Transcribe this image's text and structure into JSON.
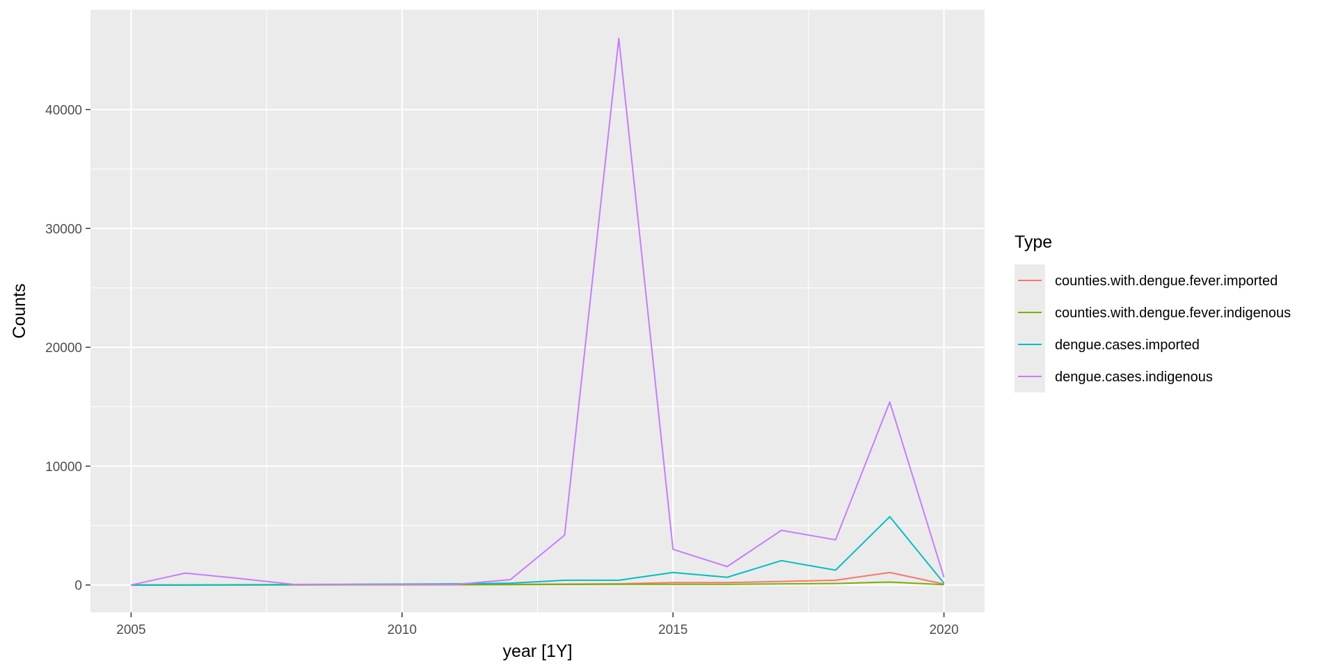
{
  "chart_data": {
    "type": "line",
    "title": "",
    "xlabel": "year [1Y]",
    "ylabel": "Counts",
    "x": [
      2005,
      2006,
      2007,
      2008,
      2009,
      2010,
      2011,
      2012,
      2013,
      2014,
      2015,
      2016,
      2017,
      2018,
      2019,
      2020
    ],
    "xticks": [
      2005,
      2010,
      2015,
      2020
    ],
    "xlim": [
      2004.25,
      2020.75
    ],
    "yticks": [
      0,
      10000,
      20000,
      30000,
      40000
    ],
    "ylim": [
      -2300,
      48400
    ],
    "grid": true,
    "legend": {
      "title": "Type",
      "placement": "right"
    },
    "series": [
      {
        "name": "counties.with.dengue.fever.imported",
        "color": "#F8766D",
        "values": [
          0,
          0,
          5,
          10,
          15,
          20,
          30,
          50,
          80,
          100,
          200,
          200,
          300,
          400,
          1050,
          80
        ]
      },
      {
        "name": "counties.with.dengue.fever.indigenous",
        "color": "#7CAE00",
        "values": [
          0,
          0,
          0,
          5,
          10,
          15,
          20,
          30,
          40,
          60,
          60,
          60,
          90,
          120,
          250,
          30
        ]
      },
      {
        "name": "dengue.cases.imported",
        "color": "#00BFC4",
        "values": [
          0,
          0,
          20,
          40,
          60,
          80,
          100,
          150,
          400,
          400,
          1050,
          650,
          2050,
          1250,
          5750,
          150
        ]
      },
      {
        "name": "dengue.cases.indigenous",
        "color": "#C77CFF",
        "values": [
          0,
          1000,
          550,
          50,
          50,
          50,
          50,
          450,
          4200,
          46000,
          3000,
          1550,
          4600,
          3800,
          15400,
          650
        ]
      }
    ]
  }
}
